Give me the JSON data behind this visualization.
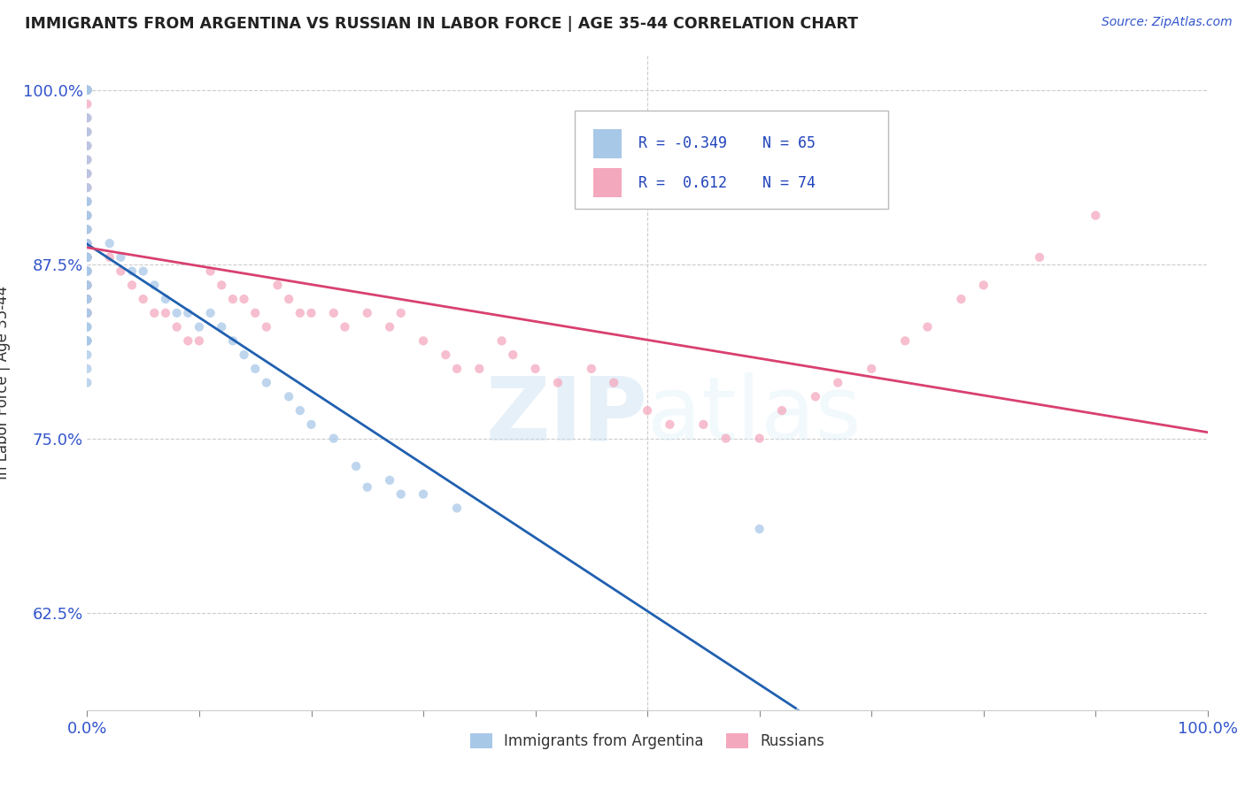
{
  "title": "IMMIGRANTS FROM ARGENTINA VS RUSSIAN IN LABOR FORCE | AGE 35-44 CORRELATION CHART",
  "source": "Source: ZipAtlas.com",
  "ylabel": "In Labor Force | Age 35-44",
  "legend_label1": "Immigrants from Argentina",
  "legend_label2": "Russians",
  "R1": -0.349,
  "N1": 65,
  "R2": 0.612,
  "N2": 74,
  "color1": "#a8c8e8",
  "color2": "#f4a8be",
  "line_color1": "#2060b0",
  "line_color2": "#d94070",
  "xlim": [
    0.0,
    1.0
  ],
  "ylim": [
    0.555,
    1.025
  ],
  "x_ticks": [
    0.0,
    0.1,
    0.2,
    0.3,
    0.4,
    0.5,
    0.6,
    0.7,
    0.8,
    0.9,
    1.0
  ],
  "x_tick_labels_show": [
    0.0,
    1.0
  ],
  "y_ticks": [
    0.625,
    0.75,
    0.875,
    1.0
  ],
  "y_tick_labels": [
    "62.5%",
    "75.0%",
    "87.5%",
    "100.0%"
  ],
  "argentina_x": [
    0.0,
    0.0,
    0.0,
    0.0,
    0.0,
    0.0,
    0.0,
    0.0,
    0.0,
    0.0,
    0.0,
    0.0,
    0.0,
    0.0,
    0.0,
    0.0,
    0.0,
    0.0,
    0.0,
    0.0,
    0.0,
    0.0,
    0.0,
    0.0,
    0.0,
    0.0,
    0.0,
    0.0,
    0.0,
    0.0,
    0.0,
    0.0,
    0.0,
    0.0,
    0.0,
    0.0,
    0.0,
    0.0,
    0.0,
    0.02,
    0.03,
    0.04,
    0.05,
    0.06,
    0.07,
    0.08,
    0.09,
    0.1,
    0.11,
    0.12,
    0.13,
    0.14,
    0.15,
    0.16,
    0.18,
    0.19,
    0.2,
    0.22,
    0.24,
    0.27,
    0.3,
    0.33,
    0.25,
    0.28,
    0.6
  ],
  "argentina_y": [
    1.0,
    1.0,
    1.0,
    1.0,
    1.0,
    0.98,
    0.97,
    0.96,
    0.95,
    0.94,
    0.93,
    0.92,
    0.92,
    0.91,
    0.91,
    0.9,
    0.9,
    0.89,
    0.89,
    0.88,
    0.88,
    0.88,
    0.87,
    0.87,
    0.87,
    0.86,
    0.86,
    0.85,
    0.85,
    0.84,
    0.84,
    0.83,
    0.83,
    0.82,
    0.82,
    0.82,
    0.81,
    0.8,
    0.79,
    0.89,
    0.88,
    0.87,
    0.87,
    0.86,
    0.85,
    0.84,
    0.84,
    0.83,
    0.84,
    0.83,
    0.82,
    0.81,
    0.8,
    0.79,
    0.78,
    0.77,
    0.76,
    0.75,
    0.73,
    0.72,
    0.71,
    0.7,
    0.715,
    0.71,
    0.685
  ],
  "russia_x": [
    0.0,
    0.0,
    0.0,
    0.0,
    0.0,
    0.0,
    0.0,
    0.0,
    0.0,
    0.0,
    0.0,
    0.0,
    0.0,
    0.0,
    0.0,
    0.0,
    0.0,
    0.0,
    0.0,
    0.0,
    0.0,
    0.0,
    0.0,
    0.0,
    0.0,
    0.02,
    0.03,
    0.04,
    0.05,
    0.06,
    0.07,
    0.08,
    0.09,
    0.1,
    0.11,
    0.12,
    0.13,
    0.14,
    0.15,
    0.16,
    0.17,
    0.18,
    0.19,
    0.2,
    0.22,
    0.23,
    0.25,
    0.27,
    0.28,
    0.3,
    0.32,
    0.33,
    0.35,
    0.37,
    0.38,
    0.4,
    0.42,
    0.45,
    0.47,
    0.5,
    0.52,
    0.55,
    0.57,
    0.6,
    0.62,
    0.65,
    0.67,
    0.7,
    0.73,
    0.75,
    0.78,
    0.8,
    0.85,
    0.9
  ],
  "russia_y": [
    1.0,
    1.0,
    1.0,
    1.0,
    0.99,
    0.98,
    0.97,
    0.96,
    0.95,
    0.94,
    0.93,
    0.92,
    0.91,
    0.9,
    0.89,
    0.88,
    0.88,
    0.87,
    0.87,
    0.86,
    0.86,
    0.85,
    0.85,
    0.84,
    0.84,
    0.88,
    0.87,
    0.86,
    0.85,
    0.84,
    0.84,
    0.83,
    0.82,
    0.82,
    0.87,
    0.86,
    0.85,
    0.85,
    0.84,
    0.83,
    0.86,
    0.85,
    0.84,
    0.84,
    0.84,
    0.83,
    0.84,
    0.83,
    0.84,
    0.82,
    0.81,
    0.8,
    0.8,
    0.82,
    0.81,
    0.8,
    0.79,
    0.8,
    0.79,
    0.77,
    0.76,
    0.76,
    0.75,
    0.75,
    0.77,
    0.78,
    0.79,
    0.8,
    0.82,
    0.83,
    0.85,
    0.86,
    0.88,
    0.91
  ]
}
